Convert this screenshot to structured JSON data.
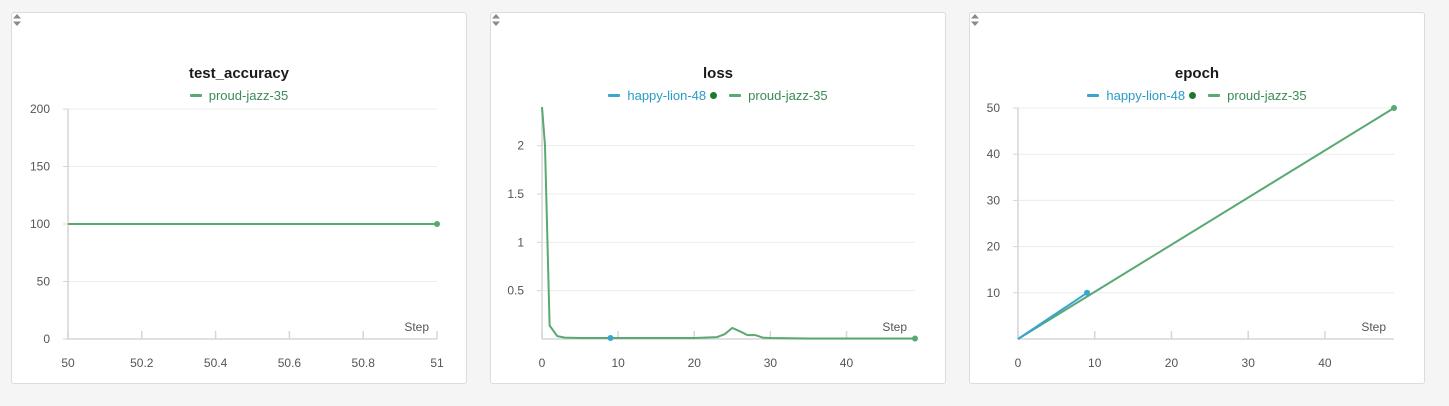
{
  "colors": {
    "green": "#5aa872",
    "blue": "#3aa6d0",
    "grid": "#ececec",
    "axis": "#d6d6d6",
    "status_dot": "#1c7a2e"
  },
  "icons": {
    "sort": "sort-updown-icon",
    "status": "status-dot-icon"
  },
  "panels": [
    {
      "title": "test_accuracy",
      "legend": [
        {
          "label": "proud-jazz-35",
          "color": "#5aa872",
          "dot": false
        }
      ]
    },
    {
      "title": "loss",
      "legend": [
        {
          "label": "happy-lion-48",
          "color": "#3aa6d0",
          "dot": true
        },
        {
          "label": "proud-jazz-35",
          "color": "#5aa872",
          "dot": false
        }
      ]
    },
    {
      "title": "epoch",
      "legend": [
        {
          "label": "happy-lion-48",
          "color": "#3aa6d0",
          "dot": true
        },
        {
          "label": "proud-jazz-35",
          "color": "#5aa872",
          "dot": false
        }
      ]
    }
  ],
  "chart_data": [
    {
      "type": "line",
      "title": "test_accuracy",
      "xlabel": "Step",
      "ylabel": "",
      "xlim": [
        50,
        51
      ],
      "ylim": [
        0,
        200
      ],
      "xticks": [
        50,
        50.2,
        50.4,
        50.6,
        50.8,
        51
      ],
      "xtick_labels": [
        "50",
        "50.2",
        "50.4",
        "50.6",
        "50.8",
        "51"
      ],
      "yticks": [
        0,
        50,
        100,
        150,
        200
      ],
      "ytick_labels": [
        "0",
        "50",
        "100",
        "150",
        "200"
      ],
      "grid": true,
      "series": [
        {
          "name": "proud-jazz-35",
          "color": "#5aa872",
          "x": [
            50,
            51
          ],
          "y": [
            100,
            100
          ],
          "end_marker": true
        }
      ]
    },
    {
      "type": "line",
      "title": "loss",
      "xlabel": "Step",
      "ylabel": "",
      "xlim": [
        0,
        49
      ],
      "ylim": [
        0,
        2.4
      ],
      "xticks": [
        0,
        10,
        20,
        30,
        40
      ],
      "xtick_labels": [
        "0",
        "10",
        "20",
        "30",
        "40"
      ],
      "yticks": [
        0.5,
        1,
        1.5,
        2
      ],
      "ytick_labels": [
        "0.5",
        "1",
        "1.5",
        "2"
      ],
      "grid": true,
      "series": [
        {
          "name": "proud-jazz-35",
          "color": "#5aa872",
          "end_marker": true,
          "x": [
            0,
            0.4,
            1,
            2,
            3,
            5,
            10,
            15,
            20,
            23,
            24,
            25,
            26,
            27,
            28,
            29,
            30,
            35,
            40,
            45,
            49
          ],
          "y": [
            2.4,
            2.0,
            0.14,
            0.03,
            0.015,
            0.01,
            0.01,
            0.01,
            0.01,
            0.02,
            0.05,
            0.115,
            0.08,
            0.04,
            0.04,
            0.015,
            0.01,
            0.005,
            0.005,
            0.005,
            0.005
          ]
        },
        {
          "name": "happy-lion-48",
          "color": "#3aa6d0",
          "x": [
            9
          ],
          "y": [
            0.01
          ],
          "end_marker": true
        }
      ]
    },
    {
      "type": "line",
      "title": "epoch",
      "xlabel": "Step",
      "ylabel": "",
      "xlim": [
        0,
        49
      ],
      "ylim": [
        0,
        50
      ],
      "xticks": [
        0,
        10,
        20,
        30,
        40
      ],
      "xtick_labels": [
        "0",
        "10",
        "20",
        "30",
        "40"
      ],
      "yticks": [
        10,
        20,
        30,
        40,
        50
      ],
      "ytick_labels": [
        "10",
        "20",
        "30",
        "40",
        "50"
      ],
      "grid": true,
      "series": [
        {
          "name": "proud-jazz-35",
          "color": "#5aa872",
          "x": [
            0,
            49
          ],
          "y": [
            0,
            50
          ],
          "end_marker": true
        },
        {
          "name": "happy-lion-48",
          "color": "#3aa6d0",
          "x": [
            0,
            9
          ],
          "y": [
            0,
            10
          ],
          "end_marker": true
        }
      ]
    }
  ]
}
